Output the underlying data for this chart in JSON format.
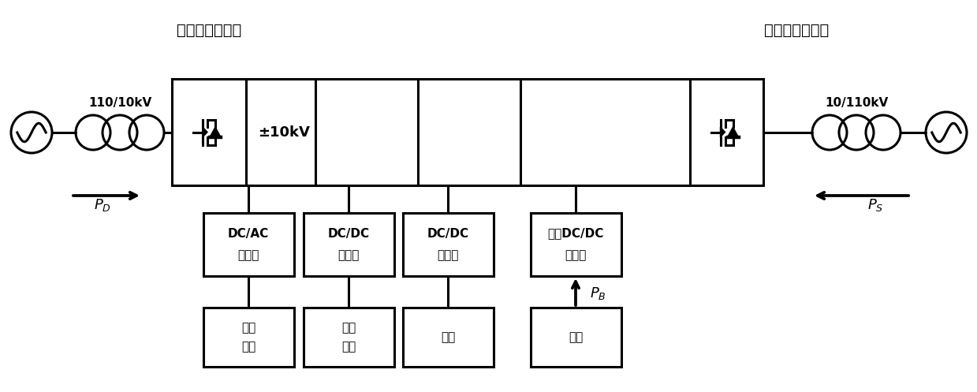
{
  "title_left": "定直流电压控制",
  "title_right": "定有功功率控制",
  "label_110_10": "110/10kV",
  "label_10_110": "10/110kV",
  "label_pm10kV": "±10kV",
  "label_PD": "$P_D$",
  "label_PS": "$P_S$",
  "label_PB": "$P_B$",
  "box1_line1": "DC/AC",
  "box1_line2": "换流器",
  "box2_line1": "DC/DC",
  "box2_line2": "变换器",
  "box3_line1": "DC/DC",
  "box3_line2": "变换器",
  "box4_line1": "双向DC/DC",
  "box4_line2": "变换器",
  "bot1_line1": "交流",
  "bot1_line2": "负荷",
  "bot2_line1": "直流",
  "bot2_line2": "负荷",
  "bot3_line1": "光伏",
  "bot4_line1": "储能",
  "bg_color": "#ffffff",
  "line_color": "#000000",
  "text_color": "#000000",
  "lw": 2.2
}
